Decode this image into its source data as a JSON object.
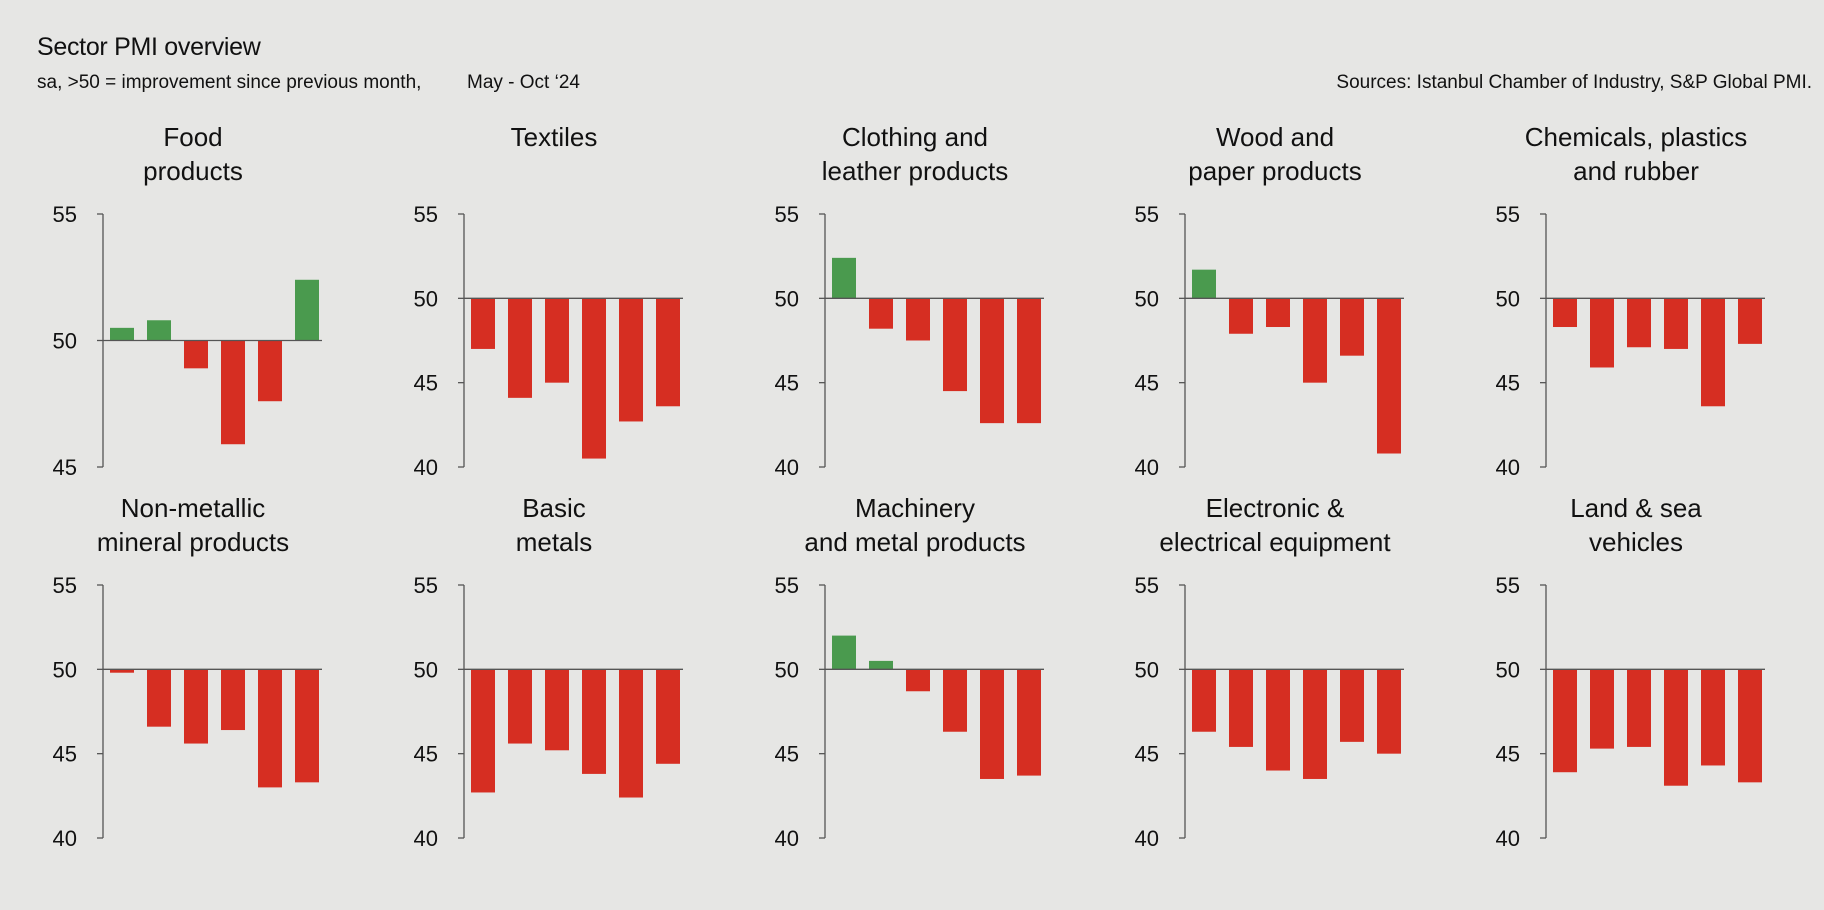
{
  "header": {
    "title": "Sector PMI overview",
    "subtitle": "sa, >50 = improvement since previous month,",
    "period": "May - Oct ‘24",
    "source": "Sources: Istanbul Chamber of Industry, S&P Global PMI."
  },
  "colors": {
    "positive": "#4a9a4e",
    "negative": "#d62e22",
    "axis": "#555555",
    "background": "#e6e6e4"
  },
  "chart_data": [
    {
      "type": "bar",
      "title": "Food\nproducts",
      "ylim": [
        45,
        55
      ],
      "yticks": [
        45,
        50,
        55
      ],
      "baseline": 50,
      "values": [
        50.5,
        50.8,
        48.9,
        45.9,
        47.6,
        52.4
      ]
    },
    {
      "type": "bar",
      "title": "Textiles",
      "ylim": [
        40,
        55
      ],
      "yticks": [
        40,
        45,
        50,
        55
      ],
      "baseline": 50,
      "values": [
        47.0,
        44.1,
        45.0,
        40.5,
        42.7,
        43.6
      ]
    },
    {
      "type": "bar",
      "title": "Clothing and\nleather products",
      "ylim": [
        40,
        55
      ],
      "yticks": [
        40,
        45,
        50,
        55
      ],
      "baseline": 50,
      "values": [
        52.4,
        48.2,
        47.5,
        44.5,
        42.6,
        42.6
      ]
    },
    {
      "type": "bar",
      "title": "Wood and\npaper products",
      "ylim": [
        40,
        55
      ],
      "yticks": [
        40,
        45,
        50,
        55
      ],
      "baseline": 50,
      "values": [
        51.7,
        47.9,
        48.3,
        45.0,
        46.6,
        40.8
      ]
    },
    {
      "type": "bar",
      "title": "Chemicals, plastics\nand rubber",
      "ylim": [
        40,
        55
      ],
      "yticks": [
        40,
        45,
        50,
        55
      ],
      "baseline": 50,
      "values": [
        48.3,
        45.9,
        47.1,
        47.0,
        43.6,
        47.3
      ]
    },
    {
      "type": "bar",
      "title": "Non-metallic\nmineral products",
      "ylim": [
        40,
        55
      ],
      "yticks": [
        40,
        45,
        50,
        55
      ],
      "baseline": 50,
      "values": [
        49.8,
        46.6,
        45.6,
        46.4,
        43.0,
        43.3
      ]
    },
    {
      "type": "bar",
      "title": "Basic\nmetals",
      "ylim": [
        40,
        55
      ],
      "yticks": [
        40,
        45,
        50,
        55
      ],
      "baseline": 50,
      "values": [
        42.7,
        45.6,
        45.2,
        43.8,
        42.4,
        44.4
      ]
    },
    {
      "type": "bar",
      "title": "Machinery\nand metal products",
      "ylim": [
        40,
        55
      ],
      "yticks": [
        40,
        45,
        50,
        55
      ],
      "baseline": 50,
      "values": [
        52.0,
        50.5,
        48.7,
        46.3,
        43.5,
        43.7
      ]
    },
    {
      "type": "bar",
      "title": "Electronic &\nelectrical equipment",
      "ylim": [
        40,
        55
      ],
      "yticks": [
        40,
        45,
        50,
        55
      ],
      "baseline": 50,
      "values": [
        46.3,
        45.4,
        44.0,
        43.5,
        45.7,
        45.0
      ]
    },
    {
      "type": "bar",
      "title": "Land & sea\nvehicles",
      "ylim": [
        40,
        55
      ],
      "yticks": [
        40,
        45,
        50,
        55
      ],
      "baseline": 50,
      "values": [
        43.9,
        45.3,
        45.4,
        43.1,
        44.3,
        43.3
      ]
    }
  ]
}
